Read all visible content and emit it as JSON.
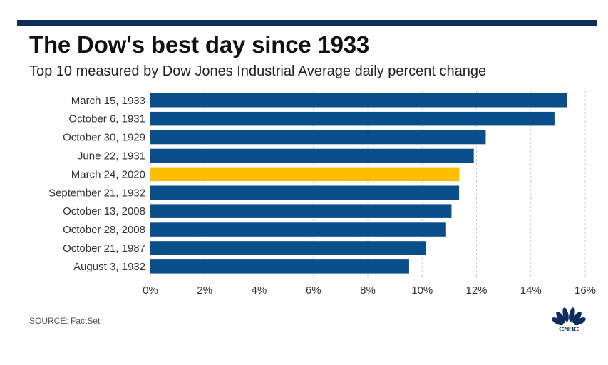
{
  "title": "The Dow's best day since 1933",
  "subtitle": "Top 10 measured by Dow Jones Industrial Average daily percent change",
  "source": "SOURCE: FactSet",
  "logo_text": "CNBC",
  "colors": {
    "bar": "#0a4e8c",
    "highlight": "#fbbf00",
    "rule": "#0d2e5c",
    "grid": "#c8c8c8",
    "text": "#333333"
  },
  "chart_data": {
    "type": "bar",
    "orientation": "horizontal",
    "title": "The Dow's best day since 1933",
    "subtitle": "Top 10 measured by Dow Jones Industrial Average daily percent change",
    "xlabel": "",
    "ylabel": "",
    "xlim": [
      0,
      16
    ],
    "x_ticks": [
      0,
      2,
      4,
      6,
      8,
      10,
      12,
      14,
      16
    ],
    "x_tick_labels": [
      "0%",
      "2%",
      "4%",
      "6%",
      "8%",
      "10%",
      "12%",
      "14%",
      "16%"
    ],
    "grid": "vertical dashed",
    "categories": [
      "March 15, 1933",
      "October 6, 1931",
      "October 30, 1929",
      "June 22, 1931",
      "March 24, 2020",
      "September 21, 1932",
      "October 13, 2008",
      "October 28, 2008",
      "October 21, 1987",
      "August 3, 1932"
    ],
    "values": [
      15.34,
      14.87,
      12.34,
      11.9,
      11.37,
      11.36,
      11.08,
      10.88,
      10.15,
      9.52
    ],
    "highlight_category": "March 24, 2020"
  }
}
